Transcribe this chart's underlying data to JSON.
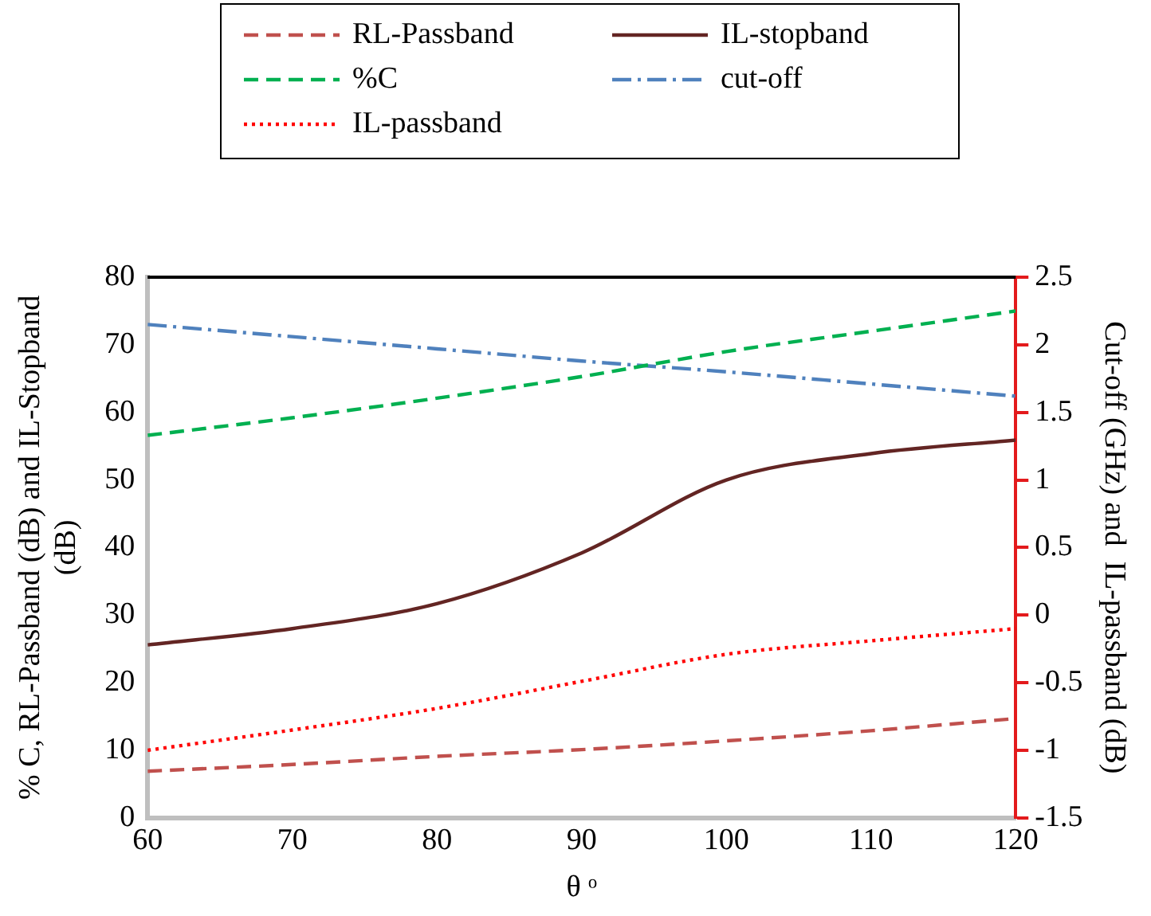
{
  "chart_data": {
    "type": "line",
    "xlabel": "θ ᵒ",
    "ylabel": "% C, RL-Passband (dB) and IL-Stopband (dB)",
    "y2label": "Cut-off (GHz) and  IL-passband (dB)",
    "x": [
      60,
      70,
      80,
      90,
      100,
      110,
      120
    ],
    "xlim": [
      60,
      120
    ],
    "xticks": [
      60,
      70,
      80,
      90,
      100,
      110,
      120
    ],
    "ylim": [
      0,
      80
    ],
    "yticks": [
      0,
      10,
      20,
      30,
      40,
      50,
      60,
      70,
      80
    ],
    "y2lim": [
      -1.5,
      2.5
    ],
    "y2ticks": [
      -1.5,
      -1,
      -0.5,
      0,
      0.5,
      1,
      1.5,
      2,
      2.5
    ],
    "grid": false,
    "legend": "top",
    "marker": "none",
    "series": [
      {
        "name": "RL-Passband",
        "color": "#c0504d",
        "line_style": "dashed",
        "values": [
          6.9,
          7.9,
          9.1,
          10.1,
          11.4,
          12.9,
          14.7
        ]
      },
      {
        "name": "IL-stopband",
        "color": "#632523",
        "line_style": "solid",
        "values": [
          25.6,
          28,
          31.7,
          39.2,
          50,
          53.9,
          55.9
        ]
      },
      {
        "name": "%C",
        "color": "#00b050",
        "line_style": "dashed",
        "values": [
          56.6,
          59.2,
          62.1,
          65.3,
          69,
          72,
          75
        ]
      },
      {
        "name": "cut-off",
        "color": "#4f81bd",
        "line_style": "dashdot",
        "axis": "y2",
        "values": [
          2.15,
          2.06,
          1.97,
          1.88,
          1.8,
          1.71,
          1.62
        ]
      },
      {
        "name": "IL-passband",
        "color": "#ff0000",
        "line_style": "dotted",
        "axis": "y2",
        "values": [
          -1,
          -0.85,
          -0.69,
          -0.49,
          -0.29,
          -0.19,
          -0.1
        ]
      }
    ]
  }
}
